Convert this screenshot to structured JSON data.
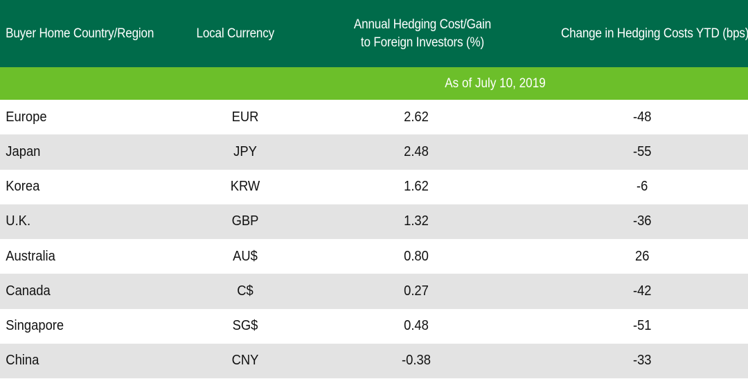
{
  "header": {
    "region": "Buyer Home Country/Region",
    "currency": "Local Currency",
    "cost_line1": "Annual Hedging Cost/Gain",
    "cost_line2": "to Foreign Investors (%)",
    "change": "Change in Hedging Costs YTD (bps)"
  },
  "subheader": {
    "as_of": "As of July 10, 2019"
  },
  "colors": {
    "header": "#006b4a",
    "subheader": "#6cbf2a",
    "row_alt": "#e3e3e3"
  },
  "rows": [
    {
      "region": "Europe",
      "currency": "EUR",
      "cost": "2.62",
      "change": "-48"
    },
    {
      "region": "Japan",
      "currency": "JPY",
      "cost": "2.48",
      "change": "-55"
    },
    {
      "region": "Korea",
      "currency": "KRW",
      "cost": "1.62",
      "change": "-6"
    },
    {
      "region": "U.K.",
      "currency": "GBP",
      "cost": "1.32",
      "change": "-36"
    },
    {
      "region": "Australia",
      "currency": "AU$",
      "cost": "0.80",
      "change": "26"
    },
    {
      "region": "Canada",
      "currency": "C$",
      "cost": "0.27",
      "change": "-42"
    },
    {
      "region": "Singapore",
      "currency": "SG$",
      "cost": "0.48",
      "change": "-51"
    },
    {
      "region": "China",
      "currency": "CNY",
      "cost": "-0.38",
      "change": "-33"
    }
  ]
}
